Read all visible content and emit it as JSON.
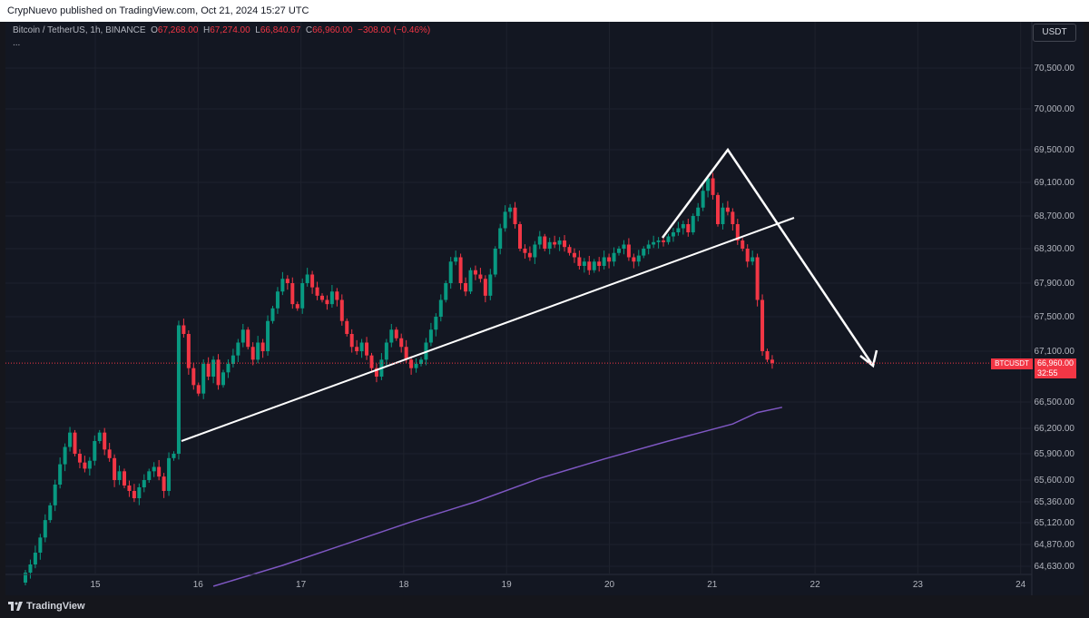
{
  "header": {
    "published": "CrypNuevo published on TradingView.com, Oct 21, 2024 15:27 UTC"
  },
  "legend": {
    "symbol": "Bitcoin / TetherUS, 1h, BINANCE",
    "o_label": "O",
    "o_value": "67,268.00",
    "h_label": "H",
    "h_value": "67,274.00",
    "l_label": "L",
    "l_value": "66,840.67",
    "c_label": "C",
    "c_value": "66,960.00",
    "change": "−308.00 (−0.46%)",
    "more": "..."
  },
  "currency": "USDT",
  "price_tag": {
    "symbol": "BTCUSDT",
    "price": "66,960.00",
    "countdown": "32:55"
  },
  "footer": {
    "logo_text": "TradingView"
  },
  "colors": {
    "up": "#089981",
    "down": "#f23645",
    "ma": "#7e57c2",
    "background": "#131722",
    "grid": "#1e222d",
    "drawing": "#ffffff"
  },
  "chart_data": {
    "type": "candlestick",
    "interval": "1h",
    "ylim": [
      64450,
      70800
    ],
    "y_ticks": [
      "70,500.00",
      "70,000.00",
      "69,500.00",
      "69,100.00",
      "68,700.00",
      "68,300.00",
      "67,900.00",
      "67,500.00",
      "67,100.00",
      "66,500.00",
      "66,200.00",
      "65,900.00",
      "65,600.00",
      "65,360.00",
      "65,120.00",
      "64,870.00",
      "64,630.00"
    ],
    "x_ticks": [
      "15",
      "16",
      "17",
      "18",
      "19",
      "20",
      "21",
      "22",
      "23",
      "24"
    ],
    "last_price": 66960,
    "closes": [
      64560,
      64650,
      64780,
      64950,
      65150,
      65320,
      65550,
      65780,
      65980,
      66150,
      65900,
      65800,
      65730,
      65820,
      66050,
      66150,
      65950,
      65850,
      65600,
      65700,
      65540,
      65480,
      65400,
      65520,
      65600,
      65700,
      65750,
      65640,
      65480,
      65850,
      65900,
      67400,
      67300,
      66900,
      66700,
      66600,
      66950,
      66800,
      67000,
      66700,
      66850,
      66950,
      67050,
      67200,
      67350,
      67150,
      67000,
      67200,
      67100,
      67450,
      67600,
      67800,
      67950,
      67900,
      67650,
      67600,
      67900,
      68000,
      67850,
      67750,
      67700,
      67650,
      67800,
      67700,
      67450,
      67300,
      67150,
      67100,
      67200,
      67050,
      66900,
      66800,
      67000,
      67200,
      67350,
      67250,
      67150,
      67000,
      66900,
      66950,
      67000,
      67200,
      67350,
      67500,
      67700,
      67900,
      68150,
      68200,
      67900,
      67800,
      68050,
      68000,
      67950,
      67750,
      68000,
      68300,
      68550,
      68750,
      68800,
      68600,
      68300,
      68250,
      68200,
      68350,
      68450,
      68300,
      68380,
      68350,
      68400,
      68320,
      68250,
      68200,
      68100,
      68150,
      68050,
      68150,
      68100,
      68200,
      68150,
      68250,
      68300,
      68350,
      68200,
      68150,
      68220,
      68300,
      68350,
      68380,
      68400,
      68380,
      68450,
      68500,
      68550,
      68600,
      68500,
      68700,
      68800,
      69000,
      69150,
      68950,
      68600,
      68800,
      68750,
      68600,
      68400,
      68300,
      68150,
      68200,
      67700,
      67100,
      67000,
      66960
    ],
    "ma_series": [
      {
        "t": 38,
        "v": 64410
      },
      {
        "t": 52,
        "v": 64640
      },
      {
        "t": 65,
        "v": 64880
      },
      {
        "t": 78,
        "v": 65130
      },
      {
        "t": 91,
        "v": 65360
      },
      {
        "t": 104,
        "v": 65620
      },
      {
        "t": 117,
        "v": 65840
      },
      {
        "t": 130,
        "v": 66050
      },
      {
        "t": 143,
        "v": 66250
      },
      {
        "t": 148,
        "v": 66380
      },
      {
        "t": 153,
        "v": 66440
      }
    ]
  }
}
